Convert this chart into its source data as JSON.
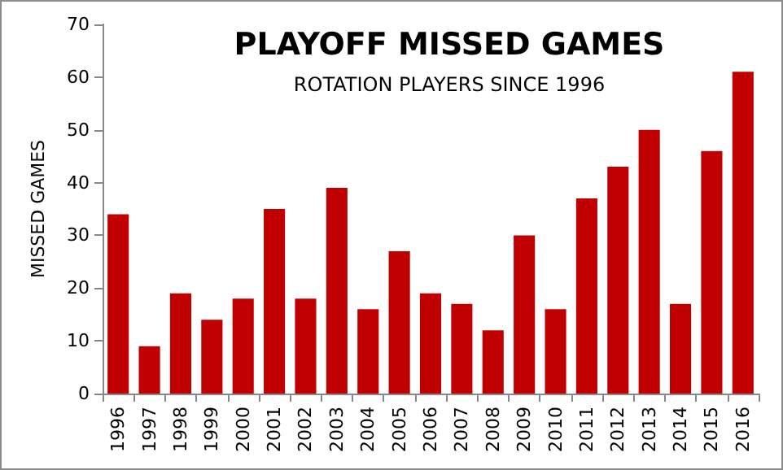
{
  "chart_data": {
    "type": "bar",
    "title": "PLAYOFF MISSED GAMES",
    "subtitle": "ROTATION PLAYERS SINCE 1996",
    "ylabel": "MISSED GAMES",
    "categories": [
      "1996",
      "1997",
      "1998",
      "1999",
      "2000",
      "2001",
      "2002",
      "2003",
      "2004",
      "2005",
      "2006",
      "2007",
      "2008",
      "2009",
      "2010",
      "2011",
      "2012",
      "2013",
      "2014",
      "2015",
      "2016"
    ],
    "values": [
      34,
      9,
      19,
      14,
      18,
      35,
      18,
      39,
      16,
      27,
      19,
      17,
      12,
      30,
      16,
      37,
      43,
      50,
      17,
      46,
      61
    ],
    "color": "#c00000",
    "ylim": [
      0,
      70
    ],
    "yticks": [
      0,
      10,
      20,
      30,
      40,
      50,
      60,
      70
    ]
  }
}
